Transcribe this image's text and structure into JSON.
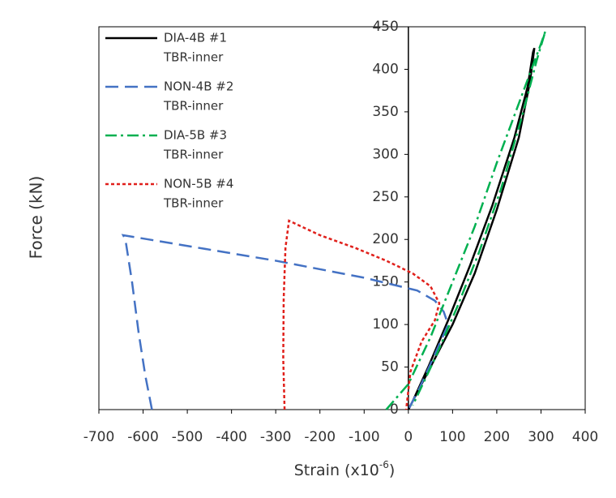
{
  "chart_data": {
    "type": "line",
    "xlabel": {
      "text": "Strain (x10",
      "sup": "-6",
      "tail": ")"
    },
    "ylabel": "Force (kN)",
    "xlim": [
      -700,
      400
    ],
    "xticks": [
      -700,
      -600,
      -500,
      -400,
      -300,
      -200,
      -100,
      0,
      100,
      200,
      300,
      400
    ],
    "ylim": [
      0,
      450
    ],
    "yticks": [
      0,
      50,
      100,
      150,
      200,
      250,
      300,
      350,
      400,
      450
    ],
    "grid": false,
    "legend": "upper-left",
    "series": [
      {
        "name": "DIA-4B #1",
        "subname": "TBR-inner",
        "color": "#000000",
        "dash": "solid",
        "x": [
          0,
          20,
          60,
          100,
          150,
          200,
          250,
          275,
          285,
          282,
          270,
          240,
          190,
          140,
          90,
          45,
          10
        ],
        "values": [
          0,
          20,
          60,
          100,
          160,
          235,
          320,
          385,
          425,
          420,
          380,
          320,
          240,
          170,
          105,
          50,
          10
        ]
      },
      {
        "name": "NON-4B #2",
        "subname": "TBR-inner",
        "color": "#4472c4",
        "dash": "dash",
        "x": [
          -580,
          -595,
          -610,
          -625,
          -640,
          -645,
          -300,
          -100,
          20,
          60,
          80,
          90,
          60,
          25,
          0
        ],
        "values": [
          0,
          40,
          90,
          150,
          200,
          205,
          175,
          155,
          140,
          128,
          115,
          100,
          65,
          25,
          0
        ]
      },
      {
        "name": "DIA-5B #3",
        "subname": "TBR-inner",
        "color": "#00b050",
        "dash": "dashdot",
        "x": [
          -50,
          0,
          50,
          100,
          150,
          200,
          250,
          300,
          310,
          290,
          260,
          210,
          160,
          110,
          60,
          10
        ],
        "values": [
          0,
          30,
          85,
          150,
          215,
          290,
          360,
          430,
          445,
          410,
          350,
          260,
          185,
          120,
          60,
          5
        ]
      },
      {
        "name": "NON-5B #4",
        "subname": "TBR-inner",
        "color": "#e0201b",
        "dash": "dot",
        "x": [
          -280,
          -283,
          -282,
          -278,
          -270,
          -200,
          -120,
          -50,
          10,
          50,
          70,
          60,
          30,
          5,
          -5
        ],
        "values": [
          0,
          60,
          130,
          190,
          222,
          205,
          190,
          175,
          160,
          145,
          125,
          105,
          80,
          45,
          0
        ]
      }
    ]
  }
}
